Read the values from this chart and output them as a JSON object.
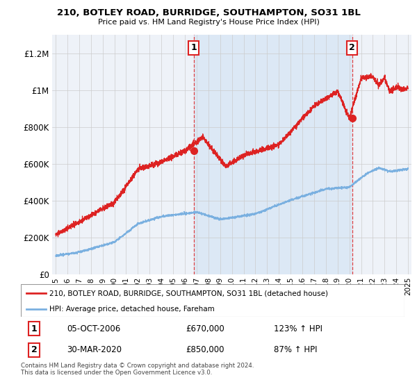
{
  "title": "210, BOTLEY ROAD, BURRIDGE, SOUTHAMPTON, SO31 1BL",
  "subtitle": "Price paid vs. HM Land Registry's House Price Index (HPI)",
  "ylabel_ticks": [
    "£0",
    "£200K",
    "£400K",
    "£600K",
    "£800K",
    "£1M",
    "£1.2M"
  ],
  "ytick_values": [
    0,
    200000,
    400000,
    600000,
    800000,
    1000000,
    1200000
  ],
  "ylim": [
    0,
    1300000
  ],
  "xlim_start": 1994.7,
  "xlim_end": 2025.3,
  "red_line_color": "#dd2222",
  "blue_line_color": "#7ab0e0",
  "fill_color": "#dce8f5",
  "marker1_x": 2006.75,
  "marker1_y": 670000,
  "marker2_x": 2020.25,
  "marker2_y": 850000,
  "annotation1_label": "1",
  "annotation2_label": "2",
  "legend_label_red": "210, BOTLEY ROAD, BURRIDGE, SOUTHAMPTON, SO31 1BL (detached house)",
  "legend_label_blue": "HPI: Average price, detached house, Fareham",
  "footer": "Contains HM Land Registry data © Crown copyright and database right 2024.\nThis data is licensed under the Open Government Licence v3.0.",
  "bg_color": "#eef2f8",
  "grid_color": "#cccccc",
  "border_color": "#aaaaaa"
}
